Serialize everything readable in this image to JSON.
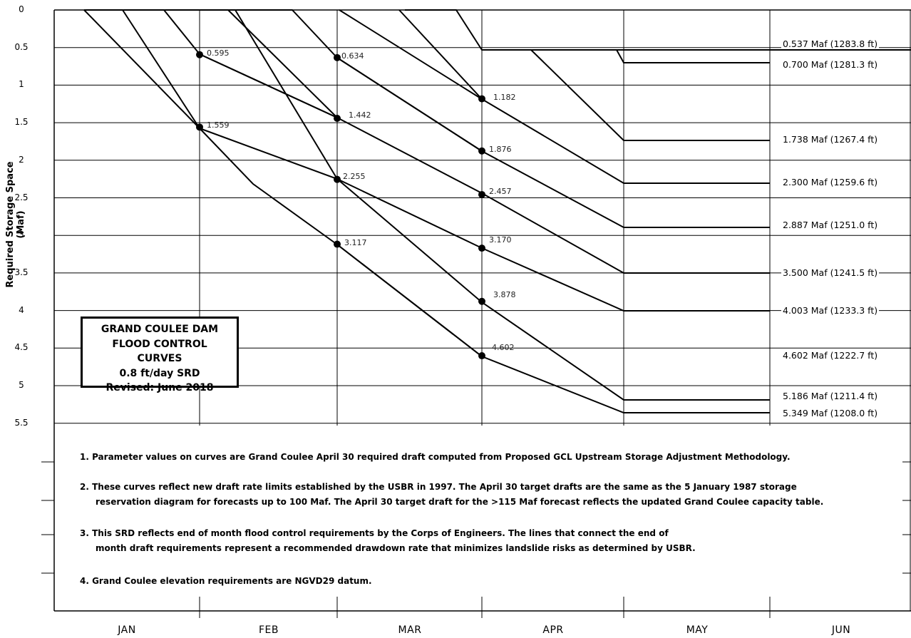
{
  "chart_data": {
    "type": "line",
    "title": "GRAND COULEE DAM FLOOD CONTROL CURVES",
    "subtitle": "0.8 ft/day SRD",
    "revised": "Revised: June 2018",
    "ylabel": "Required Storage Space  (Maf)",
    "xlabel": "",
    "ylim": [
      0,
      5.5
    ],
    "y_inverted": true,
    "yticks": [
      "0",
      "0.5",
      "1",
      "1.5",
      "2",
      "2.5",
      "3",
      "3.5",
      "4",
      "4.5",
      "5",
      "5.5"
    ],
    "months": [
      "JAN",
      "FEB",
      "MAR",
      "APR",
      "MAY",
      "JUN"
    ],
    "grid": true,
    "series": [
      {
        "points": [
          [
            0.2,
            0
          ],
          [
            0.98,
            0.54
          ],
          [
            1.97,
            0.54
          ],
          [
            5.0,
            0.54
          ]
        ],
        "label": "0.537 Maf (1283.8 ft)"
      },
      {
        "points": [
          [
            0.2,
            0
          ],
          [
            0.98,
            0.54
          ],
          [
            1.97,
            0.54
          ],
          [
            2.0,
            0.7
          ],
          [
            5.0,
            0.7
          ]
        ],
        "label": "0.700 Maf (1281.3 ft)"
      },
      {
        "points": [
          [
            -0.55,
            0
          ],
          [
            0.0,
            0.595
          ],
          [
            0.98,
            0.54
          ],
          [
            1.33,
            0.54
          ],
          [
            1.97,
            1.738
          ],
          [
            5.0,
            1.738
          ]
        ],
        "label": "1.738 Maf (1267.4 ft)"
      },
      {
        "points": [
          [
            -0.65,
            0
          ],
          [
            0.0,
            0.634
          ],
          [
            0.98,
            0.54
          ],
          [
            1.11,
            0.54
          ],
          [
            1.97,
            2.3
          ],
          [
            5.0,
            2.3
          ]
        ],
        "label": "2.300 Maf (1259.6 ft)"
      },
      {
        "points": [
          [
            -0.75,
            0
          ],
          [
            0.0,
            1.182
          ],
          [
            1.97,
            2.887
          ],
          [
            5.0,
            2.887
          ]
        ],
        "label": "2.887 Maf (1251.0 ft)"
      },
      {
        "points": [
          [
            -0.92,
            0
          ],
          [
            0.0,
            1.876
          ],
          [
            1.97,
            3.5
          ],
          [
            5.0,
            3.5
          ]
        ],
        "label": "3.500 Maf (1241.5 ft)"
      },
      {
        "points": [
          [
            -1.05,
            0
          ],
          [
            0.0,
            2.457
          ],
          [
            1.97,
            4.003
          ],
          [
            5.0,
            4.003
          ]
        ],
        "label": "4.003 Maf (1233.3 ft)"
      },
      {
        "points": [
          [
            -1.2,
            0
          ],
          [
            0.0,
            3.17
          ],
          [
            1.97,
            4.602
          ],
          [
            5.0,
            4.602
          ]
        ],
        "label": "4.602 Maf (1222.7 ft)"
      },
      {
        "points": [
          [
            -1.4,
            0
          ],
          [
            0.0,
            3.878
          ],
          [
            1.97,
            5.186
          ],
          [
            5.0,
            5.186
          ]
        ],
        "label": "5.186 Maf (1211.4 ft)"
      },
      {
        "points": [
          [
            -1.6,
            0
          ],
          [
            0.0,
            4.602
          ],
          [
            1.97,
            5.349
          ],
          [
            5.0,
            5.349
          ]
        ],
        "label": "5.349 Maf (1208.0 ft)"
      }
    ],
    "points": [
      {
        "m": "FEB",
        "v": 0.595,
        "label": "0.595"
      },
      {
        "m": "FEB",
        "v": 1.559,
        "label": "1.559"
      },
      {
        "m": "MAR",
        "v": 0.634,
        "label": "0.634"
      },
      {
        "m": "MAR",
        "v": 1.442,
        "label": "1.442"
      },
      {
        "m": "MAR",
        "v": 2.255,
        "label": "2.255"
      },
      {
        "m": "MAR",
        "v": 3.117,
        "label": "3.117"
      },
      {
        "m": "APR",
        "v": 1.182,
        "label": "1.182"
      },
      {
        "m": "APR",
        "v": 1.876,
        "label": "1.876"
      },
      {
        "m": "APR",
        "v": 2.457,
        "label": "2.457"
      },
      {
        "m": "APR",
        "v": 3.17,
        "label": "3.170"
      },
      {
        "m": "APR",
        "v": 3.878,
        "label": "3.878"
      },
      {
        "m": "APR",
        "v": 4.602,
        "label": "4.602"
      }
    ],
    "notes": [
      "1.  Parameter values on curves are Grand Coulee April 30 required draft computed from Proposed GCL Upstream Storage Adjustment Methodology.",
      "2.  These curves reflect new draft rate limits established by the USBR in 1997.  The April 30 target drafts are the same as the 5 January 1987 storage",
      "reservation diagram for forecasts up to 100 Maf.  The April 30 target draft for the >115 Maf forecast reflects the updated Grand Coulee capacity table.",
      "3.  This SRD reflects end of month flood control requirements by the Corps of Engineers.  The lines that connect the end of",
      "month draft requirements represent a recommended drawdown rate that minimizes landslide risks as determined by USBR.",
      "4.  Grand Coulee elevation requirements are NGVD29 datum."
    ]
  }
}
